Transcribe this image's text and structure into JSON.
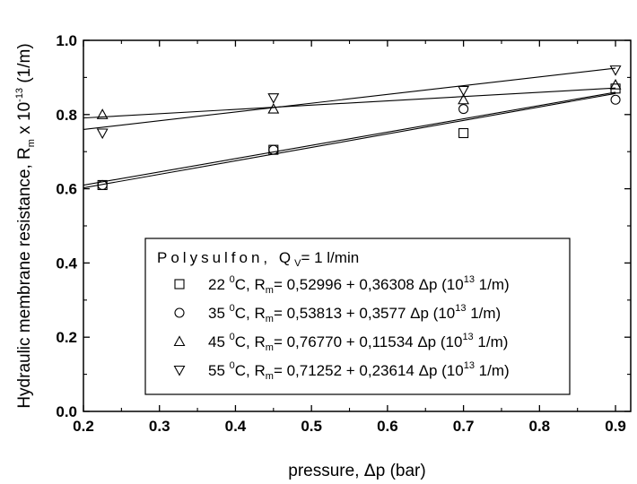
{
  "chart_data": {
    "type": "scatter",
    "xlabel_main": "pressure, ",
    "xlabel_delta": "Δ",
    "xlabel_rest": "p (bar)",
    "ylabel_main": "Hydraulic membrane resistance, R",
    "ylabel_sub": "m",
    "ylabel_mid": " x 10",
    "ylabel_sup": "-13",
    "ylabel_unit": " (1/m)",
    "xlim": [
      0.2,
      0.92
    ],
    "ylim": [
      0.0,
      1.0
    ],
    "x_ticks": [
      "0.2",
      "0.3",
      "0.4",
      "0.5",
      "0.6",
      "0.7",
      "0.8",
      "0.9"
    ],
    "y_ticks": [
      "0.0",
      "0.2",
      "0.4",
      "0.6",
      "0.8",
      "1.0"
    ],
    "x_tick_values": [
      0.2,
      0.3,
      0.4,
      0.5,
      0.6,
      0.7,
      0.8,
      0.9
    ],
    "y_tick_values": [
      0.0,
      0.2,
      0.4,
      0.6,
      0.8,
      1.0
    ],
    "legend_title_spaced": "Polysulfon, Q",
    "legend_title_sub": "V",
    "legend_title_rest": "= 1 l/min",
    "series": [
      {
        "name": "22 °C",
        "temp": "22 ",
        "marker": "square",
        "intercept": 0.52996,
        "slope": 0.36308,
        "equation": "= 0,52996 + 0,36308  Δp (10",
        "points": [
          [
            0.225,
            0.61
          ],
          [
            0.45,
            0.705
          ],
          [
            0.7,
            0.75
          ],
          [
            0.9,
            0.87
          ]
        ]
      },
      {
        "name": "35 °C",
        "temp": "35 ",
        "marker": "circle",
        "intercept": 0.53813,
        "slope": 0.3577,
        "equation": "= 0,53813 + 0,3577   Δp (10",
        "points": [
          [
            0.225,
            0.61
          ],
          [
            0.45,
            0.705
          ],
          [
            0.7,
            0.815
          ],
          [
            0.9,
            0.84
          ]
        ]
      },
      {
        "name": "45 °C",
        "temp": "45 ",
        "marker": "triangle-up",
        "intercept": 0.7677,
        "slope": 0.11534,
        "equation": "= 0,76770 + 0,11534  Δp (10",
        "points": [
          [
            0.225,
            0.8
          ],
          [
            0.45,
            0.815
          ],
          [
            0.7,
            0.84
          ],
          [
            0.9,
            0.88
          ]
        ]
      },
      {
        "name": "55 °C",
        "temp": "55 ",
        "marker": "triangle-down",
        "intercept": 0.71252,
        "slope": 0.23614,
        "equation": "= 0,71252 + 0,23614  Δp (10",
        "points": [
          [
            0.225,
            0.75
          ],
          [
            0.45,
            0.845
          ],
          [
            0.7,
            0.865
          ],
          [
            0.9,
            0.92
          ]
        ]
      }
    ],
    "legend_deg": "0",
    "legend_c": "C, R",
    "legend_m": "m",
    "legend_13": "13",
    "legend_unit": " 1/m)",
    "grid": false,
    "legend_position": "bottom-right"
  }
}
